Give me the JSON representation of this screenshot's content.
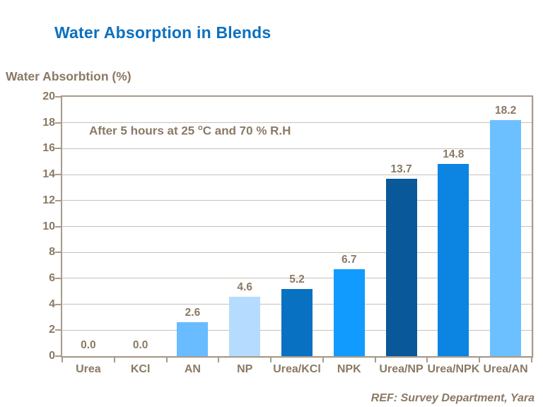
{
  "colors": {
    "title_blue": "#0C70C0",
    "text_brown": "#8A7964",
    "plot_border": "#A89B8C",
    "gridline": "#C9C1B8",
    "background": "#FFFFFF"
  },
  "chart_data": {
    "type": "bar",
    "title": "Water Absorption in Blends",
    "ylabel": "Water Absorbtion (%)",
    "xlabel": "",
    "annotation": {
      "pre": "After 5 hours at 25 ",
      "sup": "o",
      "post": "C and 70 % R.H"
    },
    "footer": "REF: Survey Department, Yara",
    "categories": [
      "Urea",
      "KCl",
      "AN",
      "NP",
      "Urea/KCl",
      "NPK",
      "Urea/NP",
      "Urea/NPK",
      "Urea/AN"
    ],
    "values": [
      0.0,
      0.0,
      2.6,
      4.6,
      5.2,
      6.7,
      13.7,
      14.8,
      18.2
    ],
    "value_labels": [
      "0.0",
      "0.0",
      "2.6",
      "4.6",
      "5.2",
      "6.7",
      "13.7",
      "14.8",
      "18.2"
    ],
    "bar_colors": [
      null,
      null,
      "#68BCFF",
      "#B5DCFE",
      "#0971C2",
      "#129BFF",
      "#09589A",
      "#0B84E2",
      "#6CC0FF"
    ],
    "ylim": [
      0,
      20
    ],
    "yticks": [
      0,
      2,
      4,
      6,
      8,
      10,
      12,
      14,
      16,
      18,
      20
    ],
    "grid": true,
    "legend": false
  }
}
